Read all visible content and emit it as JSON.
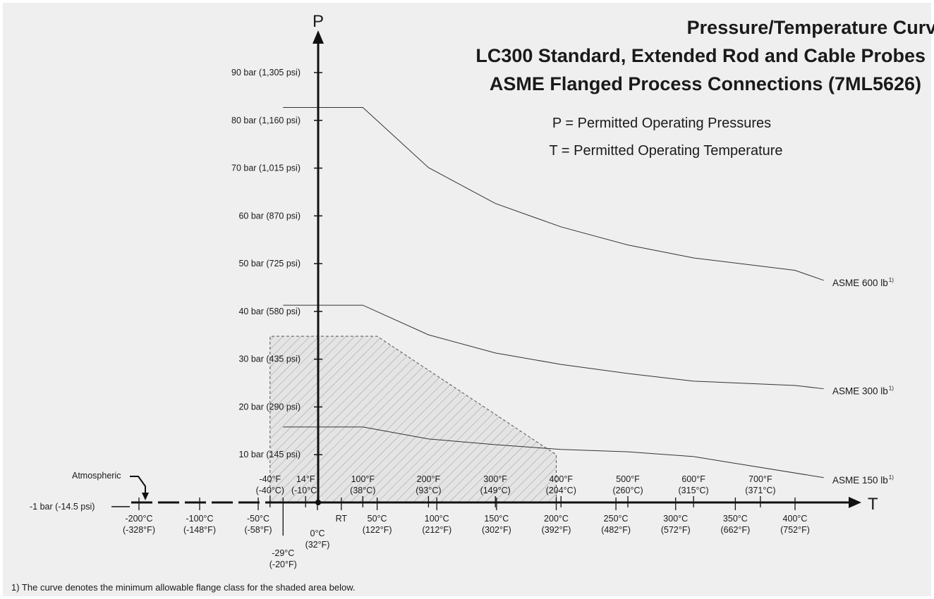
{
  "chart_data": {
    "type": "line",
    "title": [
      "Pressure/Temperature Curve",
      "LC300 Standard, Extended Rod and Cable Probes",
      "ASME Flanged Process Connections (7ML5626)"
    ],
    "subtitle": [
      "P = Permitted Operating Pressures",
      "T = Permitted Operating Temperature"
    ],
    "y_axis_label": "P",
    "x_axis_label": "T",
    "baseline_label": "-1 bar (-14.5 psi)",
    "annotation": "Atmospheric",
    "footnote": "1) The curve denotes the minimum allowable flange class for the shaded area below.",
    "ylim": [
      0,
      95
    ],
    "yticks": [
      {
        "value": 10,
        "label": "10 bar (145 psi)"
      },
      {
        "value": 20,
        "label": "20 bar (290 psi)"
      },
      {
        "value": 30,
        "label": "30 bar (435 psi)"
      },
      {
        "value": 40,
        "label": "40 bar (580 psi)"
      },
      {
        "value": 50,
        "label": "50 bar (725 psi)"
      },
      {
        "value": 60,
        "label": "60 bar (870 psi)"
      },
      {
        "value": 70,
        "label": "70 bar (1,015 psi)"
      },
      {
        "value": 80,
        "label": "80 bar (1,160 psi)"
      },
      {
        "value": 90,
        "label": "90 bar (1,305 psi)"
      }
    ],
    "xticks": [
      {
        "value": -200,
        "label": [
          "-200°C",
          "(-328°F)"
        ]
      },
      {
        "value": -100,
        "label": [
          "-100°C",
          "(-148°F)"
        ]
      },
      {
        "value": -50,
        "label": [
          "-50°C",
          "(-58°F)"
        ]
      },
      {
        "value": -29,
        "label": [
          "-29°C",
          "(-20°F)"
        ]
      },
      {
        "value": 0,
        "label": [
          "0°C",
          "(32°F)"
        ]
      },
      {
        "value": 20,
        "label": [
          "RT"
        ]
      },
      {
        "value": 50,
        "label": [
          "50°C",
          "(122°F)"
        ]
      },
      {
        "value": 100,
        "label": [
          "100°C",
          "(212°F)"
        ]
      },
      {
        "value": 150,
        "label": [
          "150°C",
          "(302°F)"
        ]
      },
      {
        "value": 200,
        "label": [
          "200°C",
          "(392°F)"
        ]
      },
      {
        "value": 250,
        "label": [
          "250°C",
          "(482°F)"
        ]
      },
      {
        "value": 300,
        "label": [
          "300°C",
          "(572°F)"
        ]
      },
      {
        "value": 350,
        "label": [
          "350°C",
          "(662°F)"
        ]
      },
      {
        "value": 400,
        "label": [
          "400°C",
          "(752°F)"
        ]
      }
    ],
    "xticks_top": [
      {
        "value": -40,
        "label": [
          "-40°F",
          "(-40°C)"
        ]
      },
      {
        "value": -10,
        "label": [
          "14°F",
          "(-10°C)"
        ]
      },
      {
        "value": 38,
        "label": [
          "100°F",
          "(38°C)"
        ]
      },
      {
        "value": 93,
        "label": [
          "200°F",
          "(93°C)"
        ]
      },
      {
        "value": 149,
        "label": [
          "300°F",
          "(149°C)"
        ]
      },
      {
        "value": 204,
        "label": [
          "400°F",
          "(204°C)"
        ]
      },
      {
        "value": 260,
        "label": [
          "500°F",
          "(260°C)"
        ]
      },
      {
        "value": 315,
        "label": [
          "600°F",
          "(315°C)"
        ]
      },
      {
        "value": 371,
        "label": [
          "700°F",
          "(371°C)"
        ]
      }
    ],
    "series": [
      {
        "name": "ASME 600 lb",
        "note": "1)",
        "color": "#333333",
        "x": [
          -29,
          38,
          93,
          149,
          204,
          260,
          315,
          400,
          424
        ],
        "values": [
          82.7,
          82.7,
          70.1,
          62.6,
          57.7,
          53.9,
          51.2,
          48.6,
          46.5
        ]
      },
      {
        "name": "ASME 300 lb",
        "note": "1)",
        "color": "#333333",
        "x": [
          -29,
          38,
          93,
          149,
          204,
          260,
          315,
          400,
          424
        ],
        "values": [
          41.3,
          41.3,
          35.1,
          31.3,
          28.9,
          27,
          25.4,
          24.5,
          23.8
        ]
      },
      {
        "name": "ASME 150 lb",
        "note": "1)",
        "color": "#333333",
        "x": [
          -29,
          38,
          93,
          149,
          204,
          260,
          315,
          424
        ],
        "values": [
          15.8,
          15.8,
          13.3,
          12.1,
          11.1,
          10.6,
          9.6,
          5.2
        ]
      }
    ],
    "shaded_area": {
      "x": [
        -40,
        -40,
        50,
        200,
        200
      ],
      "values": [
        0,
        34.8,
        34.8,
        10,
        0
      ]
    }
  }
}
